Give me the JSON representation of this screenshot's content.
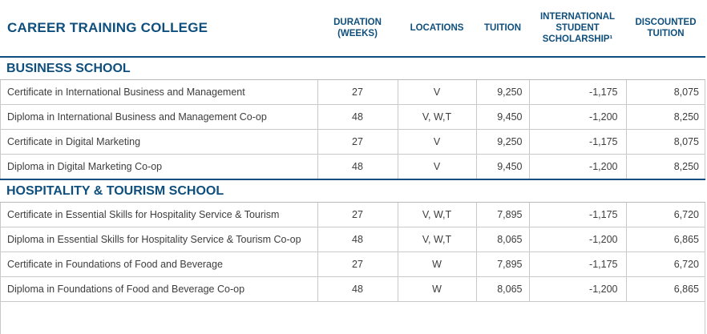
{
  "header": {
    "title": "CAREER TRAINING COLLEGE",
    "duration_line1": "DURATION",
    "duration_line2": "(WEEKS)",
    "locations": "LOCATIONS",
    "tuition": "TUITION",
    "scholarship_line1": "INTERNATIONAL",
    "scholarship_line2": "STUDENT",
    "scholarship_line3": "SCHOLARSHIP¹",
    "discounted_line1": "DISCOUNTED",
    "discounted_line2": "TUITION"
  },
  "sections": [
    {
      "name": "BUSINESS SCHOOL",
      "rows": [
        {
          "program": "Certificate in International Business and Management",
          "duration": "27",
          "locations": "V",
          "tuition": "9,250",
          "scholarship": "-1,175",
          "discounted": "8,075"
        },
        {
          "program": "Diploma  in International Business and Management Co-op",
          "duration": "48",
          "locations": "V, W,T",
          "tuition": "9,450",
          "scholarship": "-1,200",
          "discounted": "8,250"
        },
        {
          "program": "Certificate in Digital Marketing",
          "duration": "27",
          "locations": "V",
          "tuition": "9,250",
          "scholarship": "-1,175",
          "discounted": "8,075"
        },
        {
          "program": "Diploma in Digital Marketing Co-op",
          "duration": "48",
          "locations": "V",
          "tuition": "9,450",
          "scholarship": "-1,200",
          "discounted": "8,250"
        }
      ]
    },
    {
      "name": "HOSPITALITY & TOURISM SCHOOL",
      "rows": [
        {
          "program": "Certificate in Essential Skills for Hospitality Service & Tourism",
          "duration": "27",
          "locations": "V, W,T",
          "tuition": "7,895",
          "scholarship": "-1,175",
          "discounted": "6,720"
        },
        {
          "program": "Diploma in Essential Skills for Hospitality Service & Tourism Co-op",
          "duration": "48",
          "locations": "V, W,T",
          "tuition": "8,065",
          "scholarship": "-1,200",
          "discounted": "6,865"
        },
        {
          "program": "Certificate in Foundations of Food and Beverage",
          "duration": "27",
          "locations": "W",
          "tuition": "7,895",
          "scholarship": "-1,175",
          "discounted": "6,720"
        },
        {
          "program": "Diploma in Foundations of Food and Beverage Co-op",
          "duration": "48",
          "locations": "W",
          "tuition": "8,065",
          "scholarship": "-1,200",
          "discounted": "6,865"
        }
      ]
    }
  ]
}
